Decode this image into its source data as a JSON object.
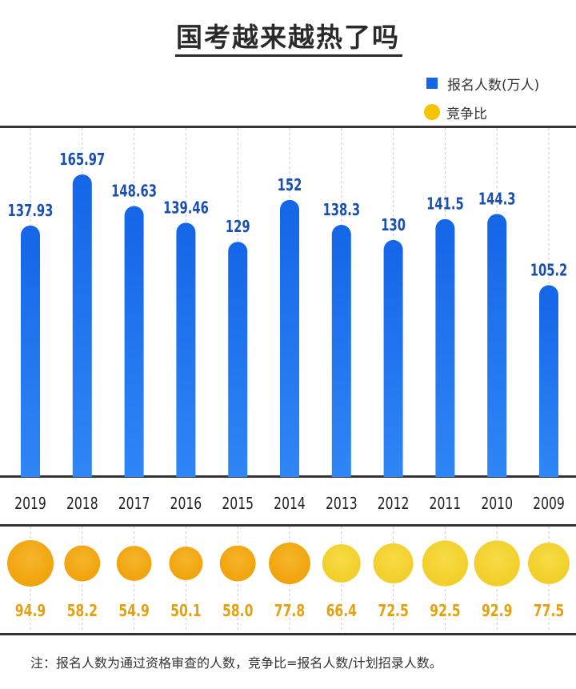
{
  "title": "国考越来越热了吗",
  "legend": {
    "applicants_label": "报名人数(万人)",
    "ratio_label": "竞争比"
  },
  "colors": {
    "bar": "#1565e8",
    "bar_light": "#2f86f5",
    "circle_gold": "#f2a90c",
    "circle_yellow": "#f3d12c",
    "bar_label": "#1a4fb0",
    "ratio_label": "#e5a10d"
  },
  "note": "注：报名人数为通过资格审查的人数，竞争比=报名人数/计划招录人数。",
  "chart_data": {
    "type": "bar",
    "categories": [
      "2019",
      "2018",
      "2017",
      "2016",
      "2015",
      "2014",
      "2013",
      "2012",
      "2011",
      "2010",
      "2009"
    ],
    "series": [
      {
        "name": "报名人数(万人)",
        "values": [
          137.93,
          165.97,
          148.63,
          139.46,
          129,
          152,
          138.3,
          130,
          141.5,
          144.3,
          105.2
        ],
        "labels": [
          "137.93",
          "165.97",
          "148.63",
          "139.46",
          "129",
          "152",
          "138.3",
          "130",
          "141.5",
          "144.3",
          "105.2"
        ]
      },
      {
        "name": "竞争比",
        "values": [
          94.9,
          58.2,
          54.9,
          50.1,
          58.0,
          77.8,
          66.4,
          72.5,
          92.5,
          92.9,
          77.5
        ],
        "labels": [
          "94.9",
          "58.2",
          "54.9",
          "50.1",
          "58.0",
          "77.8",
          "66.4",
          "72.5",
          "92.5",
          "92.9",
          "77.5"
        ]
      }
    ],
    "ylim": [
      0,
      170
    ],
    "grid": false,
    "legend_position": "top-right"
  }
}
